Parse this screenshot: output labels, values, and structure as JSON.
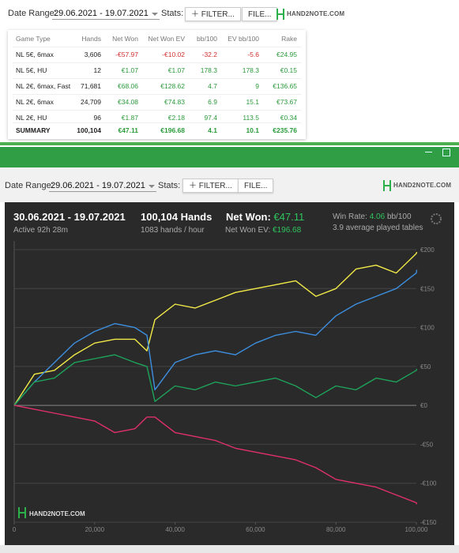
{
  "toolbar": {
    "date_label": "Date Range:",
    "date_value": "29.06.2021 - 19.07.2021",
    "stats_label": "Stats:",
    "filter_button": "FILTER...",
    "file_button": "FILE...",
    "logo": "HAND2NOTE.COM"
  },
  "toolbar2": {
    "date_value": "29.06.2021 - 19.07.2021"
  },
  "table": {
    "header": [
      "Game Type",
      "Hands",
      "Net Won",
      "Net Won  EV",
      "bb/100",
      "EV bb/100",
      "Rake"
    ],
    "rows": [
      [
        "NL 5€, 6max",
        "3,606",
        "-€57.97",
        "-€10.02",
        "-32.2",
        "-5.6",
        "€24.95"
      ],
      [
        "NL 5€, HU",
        "12",
        "€1.07",
        "€1.07",
        "178.3",
        "178.3",
        "€0.15"
      ],
      [
        "NL 2€, 6max, Fast",
        "71,681",
        "€68.06",
        "€128.62",
        "4.7",
        "9",
        "€136.65"
      ],
      [
        "NL 2€, 6max",
        "24,709",
        "€34.08",
        "€74.83",
        "6.9",
        "15.1",
        "€73.67"
      ],
      [
        "NL 2€, HU",
        "96",
        "€1.87",
        "€2.18",
        "97.4",
        "113.5",
        "€0.34"
      ]
    ],
    "summary": [
      "SUMMARY",
      "100,104",
      "€47.11",
      "€196.68",
      "4.1",
      "10.1",
      "€235.76"
    ]
  },
  "panel": {
    "period": "30.06.2021 - 19.07.2021",
    "active": "Active 92h 28m",
    "hands": "100,104 Hands",
    "hands_rate": "1083 hands / hour",
    "net_won_label": "Net Won:",
    "net_won": "€47.11",
    "net_won_ev_label": "Net Won  EV:",
    "net_won_ev": "€196.68",
    "win_rate_label": "Win Rate:",
    "win_rate": "4.06",
    "win_rate_unit": "bb/100",
    "tables": "3.9 average played tables"
  },
  "chart_data": {
    "type": "line",
    "x": [
      0,
      5000,
      10000,
      15000,
      20000,
      25000,
      30000,
      33000,
      35000,
      40000,
      45000,
      50000,
      55000,
      60000,
      65000,
      70000,
      75000,
      80000,
      85000,
      90000,
      95000,
      100000,
      100104
    ],
    "series": [
      {
        "color": "#f2ea48",
        "values": [
          0,
          40,
          45,
          65,
          80,
          85,
          85,
          70,
          110,
          130,
          125,
          135,
          145,
          150,
          155,
          160,
          140,
          150,
          175,
          180,
          170,
          195,
          197
        ]
      },
      {
        "color": "#3d8fe0",
        "values": [
          0,
          30,
          55,
          80,
          95,
          105,
          100,
          90,
          20,
          55,
          65,
          70,
          65,
          80,
          90,
          95,
          90,
          115,
          130,
          140,
          150,
          170,
          174
        ]
      },
      {
        "color": "#1ea35a",
        "values": [
          0,
          30,
          35,
          55,
          60,
          65,
          55,
          50,
          5,
          25,
          20,
          30,
          25,
          30,
          35,
          25,
          10,
          25,
          20,
          35,
          30,
          45,
          47
        ]
      },
      {
        "color": "#e0306a",
        "values": [
          0,
          -5,
          -10,
          -15,
          -20,
          -35,
          -30,
          -15,
          -15,
          -35,
          -40,
          -45,
          -55,
          -60,
          -65,
          -70,
          -80,
          -95,
          -100,
          -105,
          -115,
          -125,
          -127
        ]
      }
    ],
    "xlim": [
      0,
      100000
    ],
    "xticks": [
      0,
      {
        "value": 20000,
        "label": "20,000"
      },
      {
        "value": 40000,
        "label": "40,000"
      },
      {
        "value": 60000,
        "label": "60,000"
      },
      {
        "value": 80000,
        "label": "80,000"
      },
      {
        "value": 100000,
        "label": "100,000"
      }
    ],
    "ylim": [
      -150,
      200
    ],
    "yticks": [
      {
        "value": -150,
        "label": "-€150"
      },
      {
        "value": -100,
        "label": "-€100"
      },
      {
        "value": -50,
        "label": "-€50"
      },
      {
        "value": 0,
        "label": "€0"
      },
      {
        "value": 50,
        "label": "€50"
      },
      {
        "value": 100,
        "label": "€100"
      },
      {
        "value": 150,
        "label": "€150"
      },
      {
        "value": 200,
        "label": "€200"
      }
    ],
    "grid": true
  }
}
